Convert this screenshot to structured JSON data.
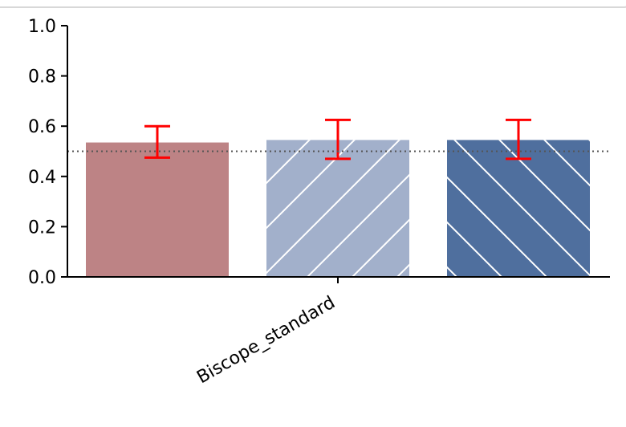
{
  "chart_data": {
    "type": "bar",
    "categories": [
      "Biscope_standard"
    ],
    "series": [
      {
        "values": [
          0.535
        ],
        "err_low": [
          0.06
        ],
        "err_high": [
          0.065
        ],
        "color": "#bd8385",
        "hatch": "none"
      },
      {
        "values": [
          0.545
        ],
        "err_low": [
          0.075
        ],
        "err_high": [
          0.08
        ],
        "color": "#a2b0cb",
        "hatch": "/"
      },
      {
        "values": [
          0.545
        ],
        "err_low": [
          0.075
        ],
        "err_high": [
          0.08
        ],
        "color": "#4f6f9e",
        "hatch": "\\"
      }
    ],
    "error_color": "#ff0000",
    "reference_line": 0.5,
    "ylim": [
      0,
      1.0
    ],
    "yticks": [
      "0.0",
      "0.2",
      "0.4",
      "0.6",
      "0.8",
      "1.0"
    ],
    "title": "",
    "xlabel": "",
    "ylabel": "",
    "grid": false
  }
}
